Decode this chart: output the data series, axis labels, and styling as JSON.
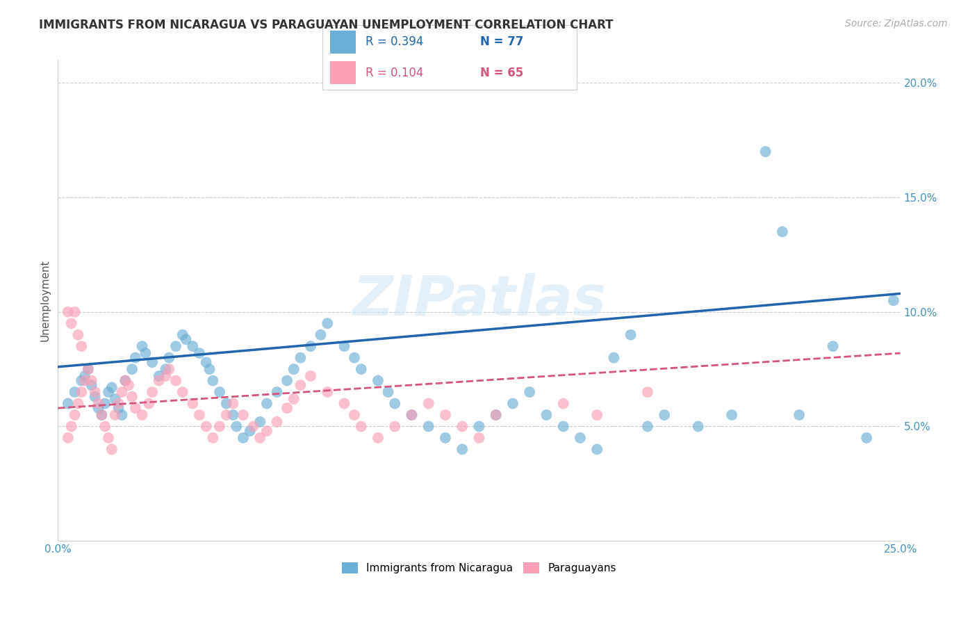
{
  "title": "IMMIGRANTS FROM NICARAGUA VS PARAGUAYAN UNEMPLOYMENT CORRELATION CHART",
  "source": "Source: ZipAtlas.com",
  "xlabel": "",
  "ylabel": "Unemployment",
  "xlim": [
    0.0,
    0.25
  ],
  "ylim": [
    0.0,
    0.21
  ],
  "yticks": [
    0.05,
    0.1,
    0.15,
    0.2
  ],
  "ytick_labels": [
    "5.0%",
    "10.0%",
    "15.0%",
    "20.0%"
  ],
  "xticks": [
    0.0,
    0.05,
    0.1,
    0.15,
    0.2,
    0.25
  ],
  "xtick_labels": [
    "0.0%",
    "",
    "",
    "",
    "",
    "25.0%"
  ],
  "legend_r1": "R = 0.394",
  "legend_n1": "N = 77",
  "legend_r2": "R = 0.104",
  "legend_n2": "N = 65",
  "color_blue": "#6baed6",
  "color_pink": "#fa9fb5",
  "color_blue_line": "#2166ac",
  "color_pink_line": "#d4547a",
  "color_axis_text": "#4393c3",
  "watermark": "ZIPatlas",
  "blue_scatter_x": [
    0.005,
    0.007,
    0.008,
    0.009,
    0.01,
    0.011,
    0.012,
    0.013,
    0.014,
    0.015,
    0.016,
    0.017,
    0.018,
    0.019,
    0.02,
    0.022,
    0.023,
    0.025,
    0.026,
    0.028,
    0.03,
    0.032,
    0.033,
    0.035,
    0.037,
    0.038,
    0.04,
    0.042,
    0.044,
    0.045,
    0.046,
    0.048,
    0.05,
    0.052,
    0.053,
    0.055,
    0.057,
    0.06,
    0.062,
    0.065,
    0.068,
    0.07,
    0.072,
    0.075,
    0.078,
    0.08,
    0.085,
    0.088,
    0.09,
    0.095,
    0.098,
    0.1,
    0.105,
    0.11,
    0.115,
    0.12,
    0.125,
    0.13,
    0.135,
    0.14,
    0.145,
    0.15,
    0.155,
    0.16,
    0.165,
    0.17,
    0.175,
    0.18,
    0.19,
    0.2,
    0.21,
    0.215,
    0.22,
    0.23,
    0.24,
    0.248,
    0.003
  ],
  "blue_scatter_y": [
    0.065,
    0.07,
    0.072,
    0.075,
    0.068,
    0.063,
    0.058,
    0.055,
    0.06,
    0.065,
    0.067,
    0.062,
    0.058,
    0.055,
    0.07,
    0.075,
    0.08,
    0.085,
    0.082,
    0.078,
    0.072,
    0.075,
    0.08,
    0.085,
    0.09,
    0.088,
    0.085,
    0.082,
    0.078,
    0.075,
    0.07,
    0.065,
    0.06,
    0.055,
    0.05,
    0.045,
    0.048,
    0.052,
    0.06,
    0.065,
    0.07,
    0.075,
    0.08,
    0.085,
    0.09,
    0.095,
    0.085,
    0.08,
    0.075,
    0.07,
    0.065,
    0.06,
    0.055,
    0.05,
    0.045,
    0.04,
    0.05,
    0.055,
    0.06,
    0.065,
    0.055,
    0.05,
    0.045,
    0.04,
    0.08,
    0.09,
    0.05,
    0.055,
    0.05,
    0.055,
    0.17,
    0.135,
    0.055,
    0.085,
    0.045,
    0.105,
    0.06
  ],
  "pink_scatter_x": [
    0.003,
    0.004,
    0.005,
    0.006,
    0.007,
    0.008,
    0.009,
    0.01,
    0.011,
    0.012,
    0.013,
    0.014,
    0.015,
    0.016,
    0.017,
    0.018,
    0.019,
    0.02,
    0.021,
    0.022,
    0.023,
    0.025,
    0.027,
    0.028,
    0.03,
    0.032,
    0.033,
    0.035,
    0.037,
    0.04,
    0.042,
    0.044,
    0.046,
    0.048,
    0.05,
    0.052,
    0.055,
    0.058,
    0.06,
    0.062,
    0.065,
    0.068,
    0.07,
    0.072,
    0.075,
    0.08,
    0.085,
    0.088,
    0.09,
    0.095,
    0.1,
    0.105,
    0.11,
    0.115,
    0.12,
    0.125,
    0.13,
    0.15,
    0.16,
    0.175,
    0.003,
    0.004,
    0.005,
    0.006,
    0.007
  ],
  "pink_scatter_y": [
    0.045,
    0.05,
    0.055,
    0.06,
    0.065,
    0.07,
    0.075,
    0.07,
    0.065,
    0.06,
    0.055,
    0.05,
    0.045,
    0.04,
    0.055,
    0.06,
    0.065,
    0.07,
    0.068,
    0.063,
    0.058,
    0.055,
    0.06,
    0.065,
    0.07,
    0.072,
    0.075,
    0.07,
    0.065,
    0.06,
    0.055,
    0.05,
    0.045,
    0.05,
    0.055,
    0.06,
    0.055,
    0.05,
    0.045,
    0.048,
    0.052,
    0.058,
    0.062,
    0.068,
    0.072,
    0.065,
    0.06,
    0.055,
    0.05,
    0.045,
    0.05,
    0.055,
    0.06,
    0.055,
    0.05,
    0.045,
    0.055,
    0.06,
    0.055,
    0.065,
    0.1,
    0.095,
    0.1,
    0.09,
    0.085
  ],
  "blue_line_x": [
    0.0,
    0.25
  ],
  "blue_line_y": [
    0.076,
    0.108
  ],
  "pink_line_x": [
    0.0,
    0.25
  ],
  "pink_line_y": [
    0.058,
    0.082
  ],
  "legend_bottom_blue": "Immigrants from Nicaragua",
  "legend_bottom_pink": "Paraguayans"
}
